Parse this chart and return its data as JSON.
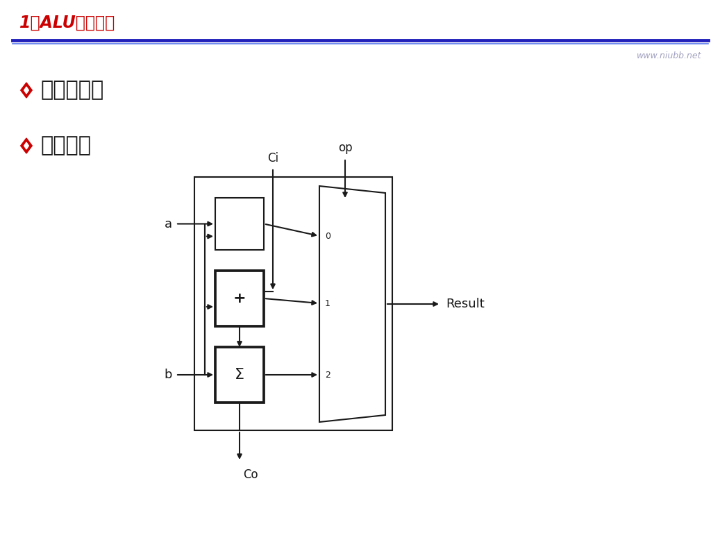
{
  "title": "1位ALU－与或加",
  "title_color": "#CC0000",
  "bg_color": "#FFFFFF",
  "line_color": "#1A1A1A",
  "header_line_color1": "#2222BB",
  "header_line_color2": "#5577EE",
  "watermark": "www.niubb.net",
  "watermark_color": "#9999BB",
  "bullet_color": "#CC0000",
  "bullet1": "与、或功能",
  "bullet2": "加法功能",
  "label_a": "a",
  "label_b": "b",
  "label_Ci": "Ci",
  "label_op": "op",
  "label_Co": "Co",
  "label_Result": "Result",
  "label_plus": "+",
  "label_sigma": "Σ",
  "label_0": "0",
  "label_1": "1",
  "label_2": "2"
}
